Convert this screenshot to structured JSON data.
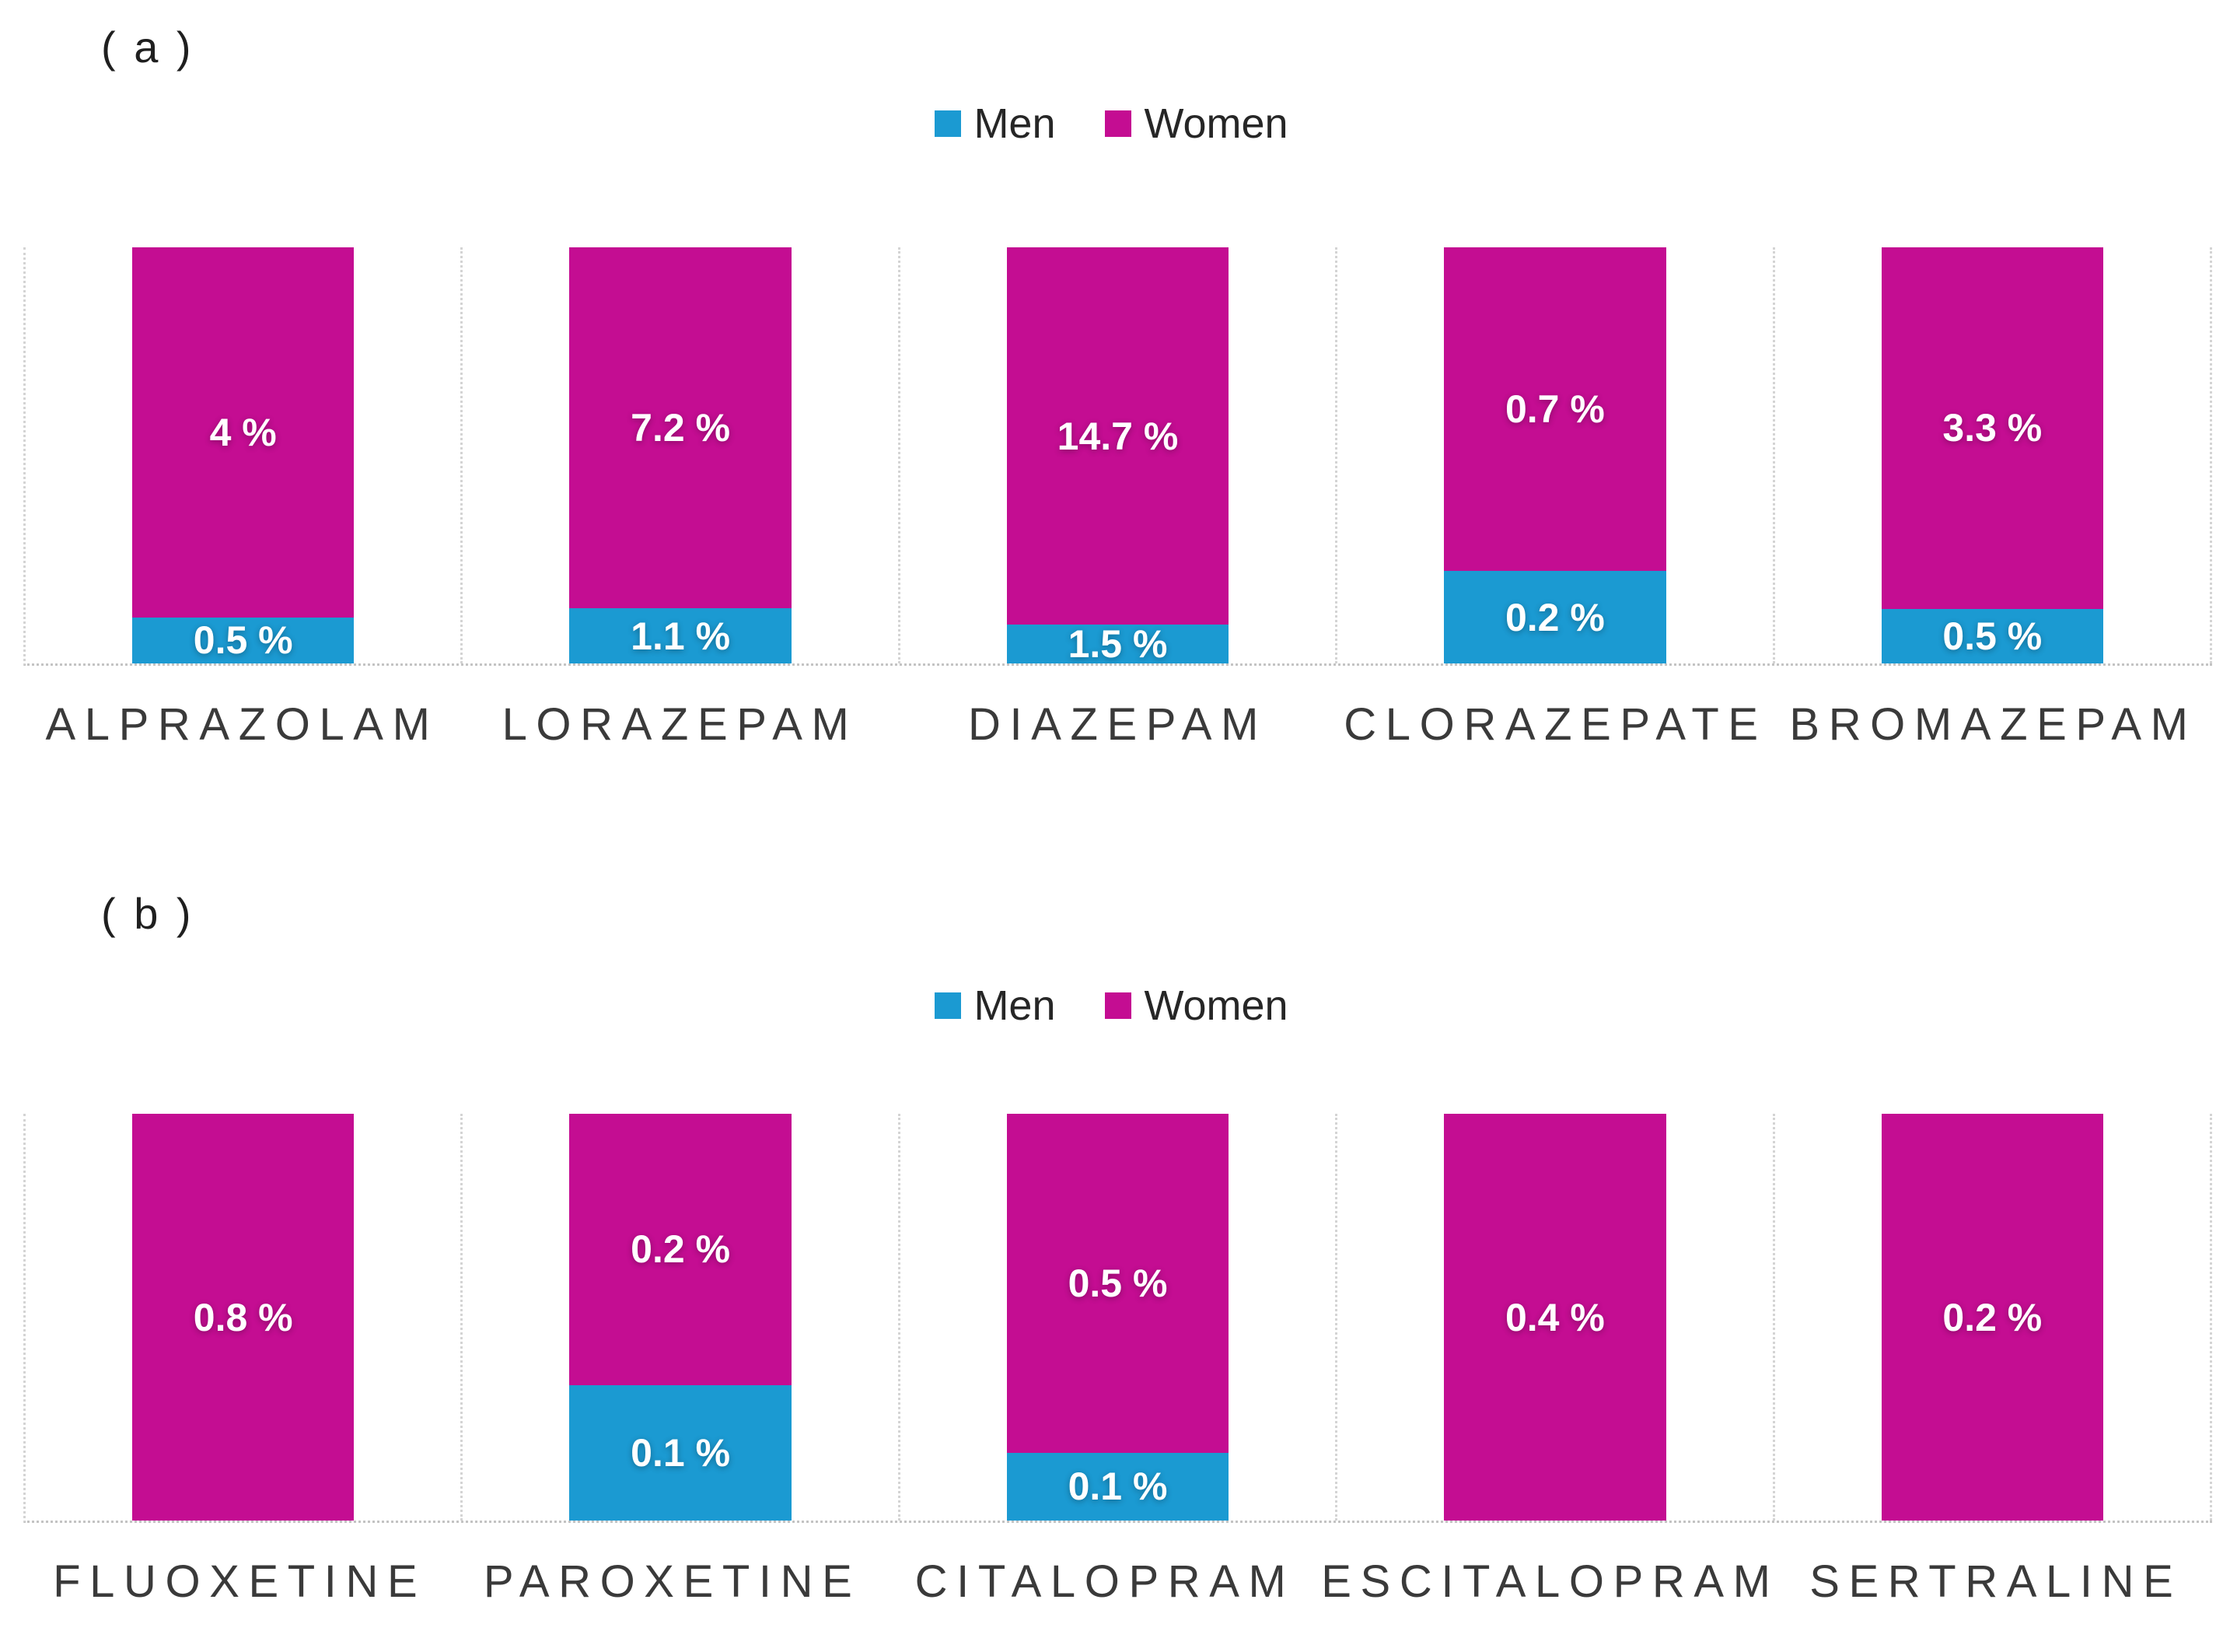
{
  "colors": {
    "men": "#1B9AD2",
    "women": "#C40D92",
    "grid_lines": "#d4d4d4",
    "baseline": "#c3c3c3",
    "category_text": "#3a3a3a",
    "legend_text": "#262626",
    "data_label_text": "#ffffff"
  },
  "sections": [
    {
      "label": "( a )"
    },
    {
      "label": "( b )"
    }
  ],
  "chart_data": [
    {
      "type": "bar",
      "subtype": "100-percent-stacked-column",
      "panel": "(a)",
      "title": "",
      "xlabel": "",
      "ylabel": "",
      "value_axis": "hidden",
      "grid": "dotted vertical separators between category panels, dotted baseline",
      "legend_position": "top-center",
      "unit": "%",
      "categories": [
        "ALPRAZOLAM",
        "LORAZEPAM",
        "DIAZEPAM",
        "CLORAZEPATE",
        "BROMAZEPAM"
      ],
      "series": [
        {
          "name": "Men",
          "color": "#1B9AD2",
          "values": [
            0.5,
            1.1,
            1.5,
            0.2,
            0.5
          ],
          "labels": [
            "0.5 %",
            "1.1 %",
            "1.5 %",
            "0.2 %",
            "0.5 %"
          ]
        },
        {
          "name": "Women",
          "color": "#C40D92",
          "values": [
            4,
            7.2,
            14.7,
            0.7,
            3.3
          ],
          "labels": [
            "4 %",
            "7.2 %",
            "14.7 %",
            "0.7 %",
            "3.3 %"
          ]
        }
      ]
    },
    {
      "type": "bar",
      "subtype": "100-percent-stacked-column",
      "panel": "(b)",
      "title": "",
      "xlabel": "",
      "ylabel": "",
      "value_axis": "hidden",
      "grid": "dotted vertical separators between category panels, dotted baseline",
      "legend_position": "top-center",
      "unit": "%",
      "categories": [
        "FLUOXETINE",
        "PAROXETINE",
        "CITALOPRAM",
        "ESCITALOPRAM",
        "SERTRALINE"
      ],
      "series": [
        {
          "name": "Men",
          "color": "#1B9AD2",
          "values": [
            0,
            0.1,
            0.1,
            0,
            0
          ],
          "labels": [
            "",
            "0.1 %",
            "0.1 %",
            "",
            ""
          ]
        },
        {
          "name": "Women",
          "color": "#C40D92",
          "values": [
            0.8,
            0.2,
            0.5,
            0.4,
            0.2
          ],
          "labels": [
            "0.8 %",
            "0.2 %",
            "0.5 %",
            "0.4 %",
            "0.2 %"
          ]
        }
      ]
    }
  ]
}
